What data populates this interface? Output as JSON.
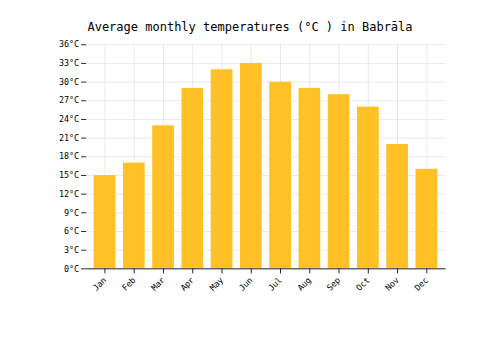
{
  "chart_data": {
    "type": "bar",
    "title": "Average monthly temperatures (°C ) in Babrāla",
    "categories": [
      "Jan",
      "Feb",
      "Mar",
      "Apr",
      "May",
      "Jun",
      "Jul",
      "Aug",
      "Sep",
      "Oct",
      "Nov",
      "Dec"
    ],
    "values": [
      15,
      17,
      23,
      29,
      32,
      33,
      30,
      29,
      28,
      26,
      20,
      16
    ],
    "color": "#FFC125",
    "ylim": [
      0,
      36
    ],
    "yticks": [
      {
        "value": 0,
        "label": "0°C"
      },
      {
        "value": 3,
        "label": "3°C"
      },
      {
        "value": 6,
        "label": "6°C"
      },
      {
        "value": 9,
        "label": "9°C"
      },
      {
        "value": 12,
        "label": "12°C"
      },
      {
        "value": 15,
        "label": "15°C"
      },
      {
        "value": 18,
        "label": "18°C"
      },
      {
        "value": 21,
        "label": "21°C"
      },
      {
        "value": 24,
        "label": "24°C"
      },
      {
        "value": 27,
        "label": "27°C"
      },
      {
        "value": 30,
        "label": "30°C"
      },
      {
        "value": 33,
        "label": "33°C"
      },
      {
        "value": 36,
        "label": "36°C"
      }
    ],
    "grid": true
  }
}
